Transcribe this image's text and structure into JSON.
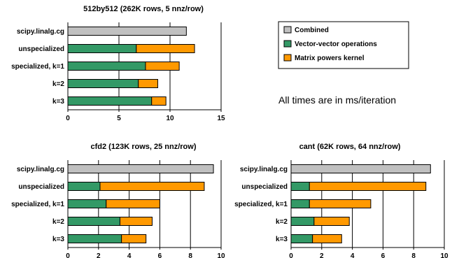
{
  "note": "All times are in ms/iteration",
  "legend": [
    {
      "label": "Combined",
      "color": "#c0c0c0"
    },
    {
      "label": "Vector-vector operations",
      "color": "#339966"
    },
    {
      "label": "Matrix powers kernel",
      "color": "#ff9900"
    }
  ],
  "chart_data": [
    {
      "type": "bar",
      "orientation": "horizontal",
      "stacked": true,
      "title": "512by512 (262K rows, 5 nnz/row)",
      "categories": [
        "scipy.linalg.cg",
        "unspecialized",
        "specialized, k=1",
        "k=2",
        "k=3"
      ],
      "series": [
        {
          "name": "Combined",
          "values": [
            11.6,
            0,
            0,
            0,
            0
          ]
        },
        {
          "name": "Vector-vector operations",
          "values": [
            0,
            6.7,
            7.6,
            6.9,
            8.2
          ]
        },
        {
          "name": "Matrix powers kernel",
          "values": [
            0,
            5.7,
            3.3,
            1.9,
            1.4
          ]
        }
      ],
      "xlim": [
        0,
        15
      ],
      "xticks": [
        0,
        5,
        10,
        15
      ],
      "grid": true
    },
    {
      "type": "bar",
      "orientation": "horizontal",
      "stacked": true,
      "title": "cfd2 (123K rows, 25 nnz/row)",
      "categories": [
        "scipy.linalg.cg",
        "unspecialized",
        "specialized, k=1",
        "k=2",
        "k=3"
      ],
      "series": [
        {
          "name": "Combined",
          "values": [
            9.5,
            0,
            0,
            0,
            0
          ]
        },
        {
          "name": "Vector-vector operations",
          "values": [
            0,
            2.1,
            2.5,
            3.4,
            3.5
          ]
        },
        {
          "name": "Matrix powers kernel",
          "values": [
            0,
            6.8,
            3.5,
            2.1,
            1.6
          ]
        }
      ],
      "xlim": [
        0,
        10
      ],
      "xticks": [
        0,
        2,
        4,
        6,
        8,
        10
      ],
      "grid": true
    },
    {
      "type": "bar",
      "orientation": "horizontal",
      "stacked": true,
      "title": "cant (62K rows, 64 nnz/row)",
      "categories": [
        "scipy.linalg.cg",
        "unspecialized",
        "specialized, k=1",
        "k=2",
        "k=3"
      ],
      "series": [
        {
          "name": "Combined",
          "values": [
            9.1,
            0,
            0,
            0,
            0
          ]
        },
        {
          "name": "Vector-vector operations",
          "values": [
            0,
            1.2,
            1.2,
            1.5,
            1.4
          ]
        },
        {
          "name": "Matrix powers kernel",
          "values": [
            0,
            7.6,
            4.0,
            2.3,
            1.9
          ]
        }
      ],
      "xlim": [
        0,
        10
      ],
      "xticks": [
        0,
        2,
        4,
        6,
        8,
        10
      ],
      "grid": true
    }
  ]
}
